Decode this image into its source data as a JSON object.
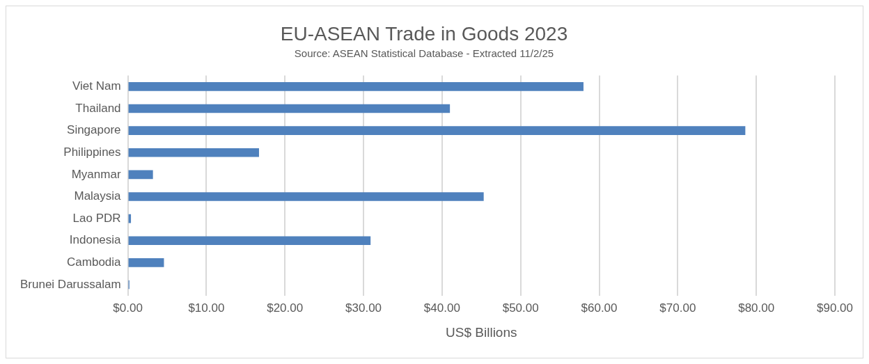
{
  "chart_data": {
    "type": "bar",
    "orientation": "horizontal",
    "title": "EU-ASEAN Trade in Goods 2023",
    "subtitle": "Source: ASEAN Statistical Database - Extracted 11/2/25",
    "xlabel": "US$ Billions",
    "categories": [
      "Viet Nam",
      "Thailand",
      "Singapore",
      "Philippines",
      "Myanmar",
      "Malaysia",
      "Lao PDR",
      "Indonesia",
      "Cambodia",
      "Brunei Darussalam"
    ],
    "values": [
      58,
      41,
      78.6,
      16.7,
      3.2,
      45.3,
      0.4,
      30.9,
      4.6,
      0.2
    ],
    "color": "#4f81bd",
    "xlim": [
      0,
      90
    ],
    "xticks": [
      {
        "value": 0,
        "label": "$0.00"
      },
      {
        "value": 10,
        "label": "$10.00"
      },
      {
        "value": 20,
        "label": "$20.00"
      },
      {
        "value": 30,
        "label": "$30.00"
      },
      {
        "value": 40,
        "label": "$40.00"
      },
      {
        "value": 50,
        "label": "$50.00"
      },
      {
        "value": 60,
        "label": "$60.00"
      },
      {
        "value": 70,
        "label": "$70.00"
      },
      {
        "value": 80,
        "label": "$80.00"
      },
      {
        "value": 90,
        "label": "$90.00"
      }
    ],
    "grid": "x",
    "legend": false
  }
}
